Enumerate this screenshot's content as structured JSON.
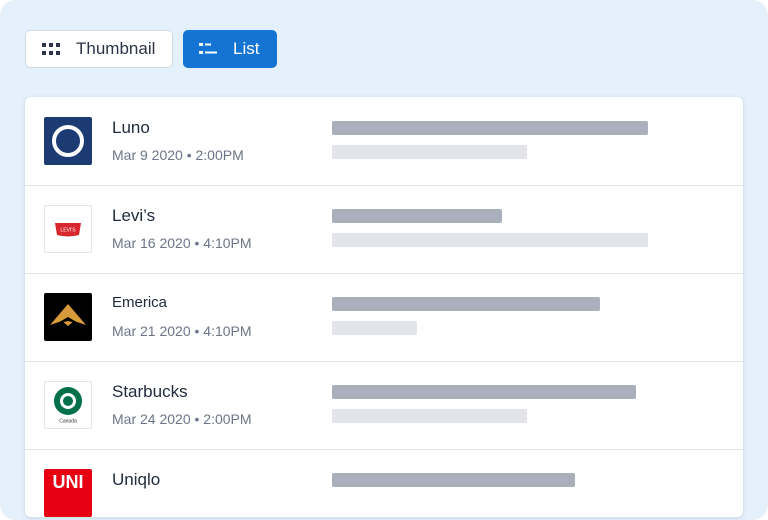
{
  "toolbar": {
    "buttons": [
      {
        "label": "Thumbnail"
      },
      {
        "label": "List"
      }
    ]
  },
  "list": {
    "items": [
      {
        "name": "Luno",
        "date": "Mar 9 2020 • 2:00PM"
      },
      {
        "name": "Levi’s",
        "date": "Mar 16 2020 • 4:10PM",
        "logo_text": "LEVI'S"
      },
      {
        "name": "Emerica",
        "date": "Mar 21 2020 • 4:10PM"
      },
      {
        "name": "Starbucks",
        "date": "Mar 24 2020 • 2:00PM",
        "logo_text": "Canada"
      },
      {
        "name": "Uniqlo",
        "logo_text": "UNI"
      }
    ]
  }
}
